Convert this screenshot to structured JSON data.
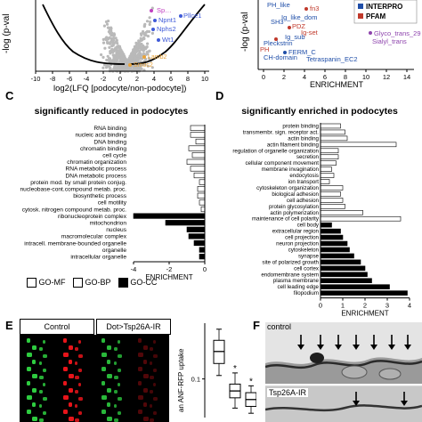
{
  "panel_letters": {
    "c": "C",
    "d": "D",
    "e": "E",
    "f": "F"
  },
  "panel_a": {
    "ylabel": "-log (p-val",
    "xlabel": "log2(LFQ [podocyte/non-podocyte])",
    "xticks": [
      "-10",
      "-8",
      "-6",
      "-4",
      "-2",
      "0",
      "2",
      "4",
      "6",
      "8",
      "10"
    ],
    "genes": [
      "Sp…",
      "Npnt1",
      "Nphs2",
      "Pllce1",
      "Wt1",
      "Lamb2",
      "Smoc2"
    ]
  },
  "panel_b": {
    "ylabel": "-log (p-val",
    "xlabel": "ENRICHMENT",
    "xticks": [
      "0",
      "2",
      "4",
      "6",
      "8",
      "10",
      "12",
      "14"
    ],
    "legend": [
      "INTERPRO",
      "PFAM"
    ],
    "labels": [
      "PH_like",
      "fn3",
      "Ig_like_dom",
      "SH3",
      "PDZ",
      "Ig-set",
      "Ig_sub",
      "Pleckstrin",
      "PH",
      "CH-domain",
      "FERM_C",
      "Tetraspanin_EC2",
      "Glyco_trans_29",
      "Sialyl_trans"
    ]
  },
  "colors": {
    "mf": "#ffffff",
    "bp": "#ffffff",
    "cc": "#000000",
    "volcano_points": "#b9b9b9",
    "curve": "#000000",
    "interpro": "#1f4ea8",
    "pfam": "#c0392b",
    "glyco": "#8e44ad",
    "green": "#2ecc40",
    "red": "#e8141a"
  },
  "chart_data": [
    {
      "type": "bar",
      "title": "significantly reduced in podocytes",
      "xlabel": "ENRICHMENT",
      "xlim": [
        -4,
        0
      ],
      "xticks": [
        "-4",
        "-2",
        "0"
      ],
      "categories": [
        "RNA binding",
        "nucleic acid binding",
        "DNA binding",
        "chromatin binding",
        "cell cycle",
        "chromatin organization",
        "RNA metabolic process",
        "DNA metabolic process",
        "protein mod. by small protein conjug.",
        "nucleobase-cont.compound metab. proc.",
        "biosynthetic process",
        "cell motility",
        "cytosk. nitrogen compound metab. proc.",
        "ribonucleoprotein complex",
        "mitochondrion",
        "nucleus",
        "macromolecular complex",
        "intracell. membrane-bounded organelle",
        "organelle",
        "intracellular organelle"
      ],
      "values": [
        -0.8,
        -0.8,
        -0.5,
        -0.9,
        -0.7,
        -1.0,
        -0.8,
        -0.6,
        -0.3,
        -0.4,
        -0.4,
        -0.3,
        -0.2,
        -4.0,
        -2.2,
        -1.0,
        -0.9,
        -0.6,
        -0.3,
        -0.3
      ],
      "groups": [
        "MF",
        "MF",
        "MF",
        "MF",
        "BP",
        "BP",
        "BP",
        "BP",
        "BP",
        "BP",
        "BP",
        "BP",
        "BP",
        "CC",
        "CC",
        "CC",
        "CC",
        "CC",
        "CC",
        "CC"
      ],
      "legend": [
        "GO-MF",
        "GO-BP",
        "GO-CC"
      ]
    },
    {
      "type": "bar",
      "title": "significantly enriched in podocytes",
      "xlabel": "ENRICHMENT",
      "xlim": [
        0,
        4
      ],
      "xticks": [
        "0",
        "1",
        "2",
        "3",
        "4"
      ],
      "categories": [
        "protein binding",
        "transmembr. sign. receptor act.",
        "actin binding",
        "actin filament binding",
        "regulation of organelle organization",
        "secretion",
        "cellular component movement",
        "membrane invagination",
        "endocytosis",
        "ion transport",
        "cytoskeleton organization",
        "biological adhesion",
        "cell adhesion",
        "protein glycosylation",
        "actin polymerization",
        "maintenance of cell polarity",
        "cell body",
        "extracellular region",
        "cell projection",
        "neuron projection",
        "cytoskeleton",
        "synapse",
        "site of polarized growth",
        "cell cortex",
        "endomembrane system",
        "plasma membrane",
        "cell leading edge",
        "filopodium"
      ],
      "values": [
        0.9,
        1.1,
        1.2,
        3.4,
        0.8,
        0.8,
        0.7,
        0.5,
        0.6,
        0.4,
        1.0,
        0.9,
        1.0,
        1.1,
        1.9,
        3.6,
        0.5,
        0.9,
        1.0,
        1.2,
        1.3,
        1.5,
        1.8,
        2.0,
        2.1,
        2.3,
        3.1,
        3.9
      ],
      "groups": [
        "MF",
        "MF",
        "MF",
        "MF",
        "BP",
        "BP",
        "BP",
        "BP",
        "BP",
        "BP",
        "BP",
        "BP",
        "BP",
        "BP",
        "BP",
        "BP",
        "CC",
        "CC",
        "CC",
        "CC",
        "CC",
        "CC",
        "CC",
        "CC",
        "CC",
        "CC",
        "CC",
        "CC"
      ]
    },
    {
      "type": "box",
      "ylabel": "an ANF-RFP uptake",
      "yticks": [
        "0.1"
      ],
      "boxes": [
        {
          "q1": 0.118,
          "median": 0.132,
          "q3": 0.145,
          "min": 0.104,
          "max": 0.158
        },
        {
          "q1": 0.078,
          "median": 0.086,
          "q3": 0.094,
          "min": 0.066,
          "max": 0.107
        },
        {
          "q1": 0.068,
          "median": 0.076,
          "q3": 0.084,
          "min": 0.06,
          "max": 0.092
        }
      ],
      "ylim": [
        0.055,
        0.165
      ],
      "annotations": [
        "*",
        "*"
      ]
    }
  ],
  "panel_e": {
    "col1": "Control",
    "col2": "Dot>Tsp26A-IR"
  },
  "panel_f": {
    "label1": "control",
    "label2": "Tsp26A-IR"
  }
}
